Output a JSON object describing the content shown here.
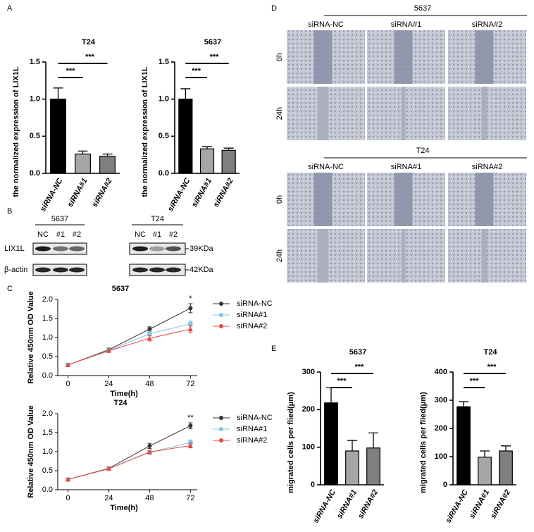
{
  "panel_labels": [
    "A",
    "B",
    "C",
    "D",
    "E"
  ],
  "chart_data": [
    {
      "type": "bar",
      "title": "T24",
      "ylabel": "the normalized expression of LIX1L",
      "categories": [
        "siRNA-NC",
        "siRNA#1",
        "siRNA#2"
      ],
      "values": [
        1.0,
        0.26,
        0.23
      ],
      "errors": [
        0.15,
        0.04,
        0.03
      ],
      "colors": [
        "#000000",
        "#a6a6a6",
        "#7f7f7f"
      ],
      "ylim": [
        0,
        1.5
      ],
      "yticks": [
        {
          "value": 0,
          "label": "0.0"
        },
        {
          "value": 0.5,
          "label": "0.5"
        },
        {
          "value": 1,
          "label": "1.0"
        },
        {
          "value": 1.5,
          "label": "1.5"
        }
      ],
      "annotations": [
        "***",
        "***"
      ]
    },
    {
      "type": "bar",
      "title": "5637",
      "ylabel": "the normalized expression of LIX1L",
      "categories": [
        "siRNA-NC",
        "siRNA#1",
        "siRNA#2"
      ],
      "values": [
        1.0,
        0.33,
        0.31
      ],
      "errors": [
        0.14,
        0.03,
        0.03
      ],
      "colors": [
        "#000000",
        "#a6a6a6",
        "#7f7f7f"
      ],
      "ylim": [
        0,
        1.5
      ],
      "yticks": [
        {
          "value": 0,
          "label": "0.0"
        },
        {
          "value": 0.5,
          "label": "0.5"
        },
        {
          "value": 1,
          "label": "1.0"
        },
        {
          "value": 1.5,
          "label": "1.5"
        }
      ],
      "annotations": [
        "***",
        "***"
      ]
    },
    {
      "type": "line",
      "title": "5637",
      "xlabel": "Time(h)",
      "ylabel": "Relative 450nm OD Value",
      "x": [
        0,
        24,
        48,
        72
      ],
      "xlim": [
        -6,
        76
      ],
      "xticks": [
        0,
        24,
        48,
        72
      ],
      "ylim": [
        0,
        2
      ],
      "yticks": [
        {
          "value": 0,
          "label": "0.0"
        },
        {
          "value": 0.5,
          "label": "0.5"
        },
        {
          "value": 1,
          "label": "1.0"
        },
        {
          "value": 1.5,
          "label": "1.5"
        },
        {
          "value": 2,
          "label": "2.0"
        }
      ],
      "series": [
        {
          "name": "siRNA-NC",
          "color": "#333333",
          "marker": "circle",
          "values": [
            0.28,
            0.68,
            1.22,
            1.77
          ],
          "errors": [
            0.03,
            0.04,
            0.06,
            0.12
          ]
        },
        {
          "name": "siRNA#1",
          "color": "#7ec8e3",
          "marker": "square",
          "values": [
            0.28,
            0.66,
            1.1,
            1.36
          ],
          "errors": [
            0.03,
            0.04,
            0.06,
            0.08
          ]
        },
        {
          "name": "siRNA#2",
          "color": "#e8473f",
          "marker": "triangle",
          "values": [
            0.28,
            0.65,
            0.98,
            1.22
          ],
          "errors": [
            0.03,
            0.04,
            0.07,
            0.1
          ]
        }
      ],
      "annotations": [
        "*"
      ]
    },
    {
      "type": "line",
      "title": "T24",
      "xlabel": "Time(h)",
      "ylabel": "Relative 450nm OD Value",
      "x": [
        0,
        24,
        48,
        72
      ],
      "xlim": [
        -6,
        76
      ],
      "xticks": [
        0,
        24,
        48,
        72
      ],
      "ylim": [
        0,
        2
      ],
      "yticks": [
        {
          "value": 0,
          "label": "0.0"
        },
        {
          "value": 0.5,
          "label": "0.5"
        },
        {
          "value": 1,
          "label": "1.0"
        },
        {
          "value": 1.5,
          "label": "1.5"
        },
        {
          "value": 2,
          "label": "2.0"
        }
      ],
      "series": [
        {
          "name": "siRNA-NC",
          "color": "#333333",
          "marker": "circle",
          "values": [
            0.27,
            0.56,
            1.15,
            1.68
          ],
          "errors": [
            0.03,
            0.04,
            0.07,
            0.08
          ]
        },
        {
          "name": "siRNA#1",
          "color": "#7ec8e3",
          "marker": "square",
          "values": [
            0.27,
            0.55,
            0.98,
            1.24
          ],
          "errors": [
            0.03,
            0.04,
            0.05,
            0.07
          ]
        },
        {
          "name": "siRNA#2",
          "color": "#e8473f",
          "marker": "triangle",
          "values": [
            0.27,
            0.55,
            0.99,
            1.16
          ],
          "errors": [
            0.03,
            0.04,
            0.05,
            0.06
          ]
        }
      ],
      "annotations": [
        "**"
      ]
    },
    {
      "type": "bar",
      "title": "5637",
      "ylabel": "migrated cells per flied(μm)",
      "categories": [
        "siRNA-NC",
        "siRNA#1",
        "siRNA#2"
      ],
      "values": [
        218,
        90,
        98
      ],
      "errors": [
        40,
        28,
        40
      ],
      "colors": [
        "#000000",
        "#a6a6a6",
        "#7f7f7f"
      ],
      "ylim": [
        0,
        300
      ],
      "yticks": [
        0,
        100,
        200,
        300
      ],
      "annotations": [
        "***",
        "***"
      ]
    },
    {
      "type": "bar",
      "title": "T24",
      "ylabel": "migrated cells per flied(μm)",
      "categories": [
        "siRNA-NC",
        "siRNA#1",
        "siRNA#2"
      ],
      "values": [
        277,
        98,
        120
      ],
      "errors": [
        18,
        22,
        18
      ],
      "colors": [
        "#000000",
        "#a6a6a6",
        "#7f7f7f"
      ],
      "ylim": [
        0,
        400
      ],
      "yticks": [
        0,
        100,
        200,
        300,
        400
      ],
      "annotations": [
        "***",
        "***"
      ]
    }
  ],
  "blot": {
    "groups": [
      {
        "name": "5637",
        "lanes": [
          "NC",
          "#1",
          "#2"
        ]
      },
      {
        "name": "T24",
        "lanes": [
          "NC",
          "#1",
          "#2"
        ]
      }
    ],
    "rows": [
      "LIX1L",
      "β-actin"
    ],
    "markers": [
      "39KDa",
      "42KDa"
    ]
  },
  "wound": {
    "groups": [
      {
        "name": "5637",
        "conditions": [
          "siRNA-NC",
          "siRNA#1",
          "siRNA#2"
        ],
        "times": [
          "0h",
          "24h"
        ]
      },
      {
        "name": "T24",
        "conditions": [
          "siRNA-NC",
          "siRNA#1",
          "siRNA#2"
        ],
        "times": [
          "0h",
          "24h"
        ]
      }
    ]
  }
}
